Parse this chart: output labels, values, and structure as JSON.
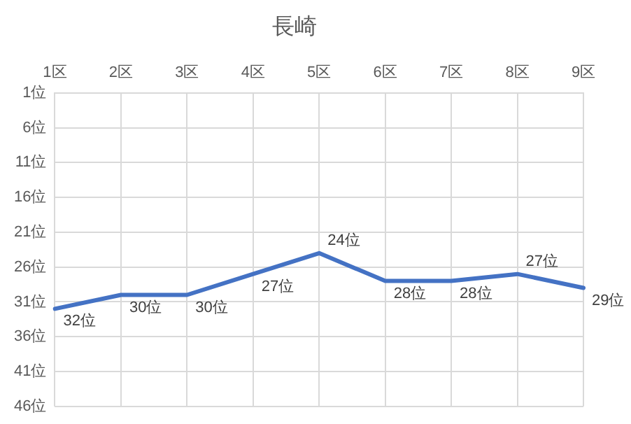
{
  "chart_data": {
    "type": "line",
    "title": "長崎",
    "categories": [
      "1区",
      "2区",
      "3区",
      "4区",
      "5区",
      "6区",
      "7区",
      "8区",
      "9区"
    ],
    "series": [
      {
        "color": "#4472c4",
        "values": [
          32,
          30,
          30,
          27,
          24,
          28,
          28,
          27,
          29
        ],
        "value_labels": [
          "32位",
          "30位",
          "30位",
          "27位",
          "24位",
          "28位",
          "28位",
          "27位",
          "29位"
        ]
      }
    ],
    "ylim": [
      46,
      1
    ],
    "yticks": [
      {
        "value": 1,
        "label": "1位"
      },
      {
        "value": 6,
        "label": "6位"
      },
      {
        "value": 11,
        "label": "11位"
      },
      {
        "value": 16,
        "label": "16位"
      },
      {
        "value": 21,
        "label": "21位"
      },
      {
        "value": 26,
        "label": "26位"
      },
      {
        "value": 31,
        "label": "31位"
      },
      {
        "value": 36,
        "label": "36位"
      },
      {
        "value": 41,
        "label": "41位"
      },
      {
        "value": 46,
        "label": "46位"
      }
    ],
    "grid": true,
    "legend": false,
    "marker": "none"
  }
}
